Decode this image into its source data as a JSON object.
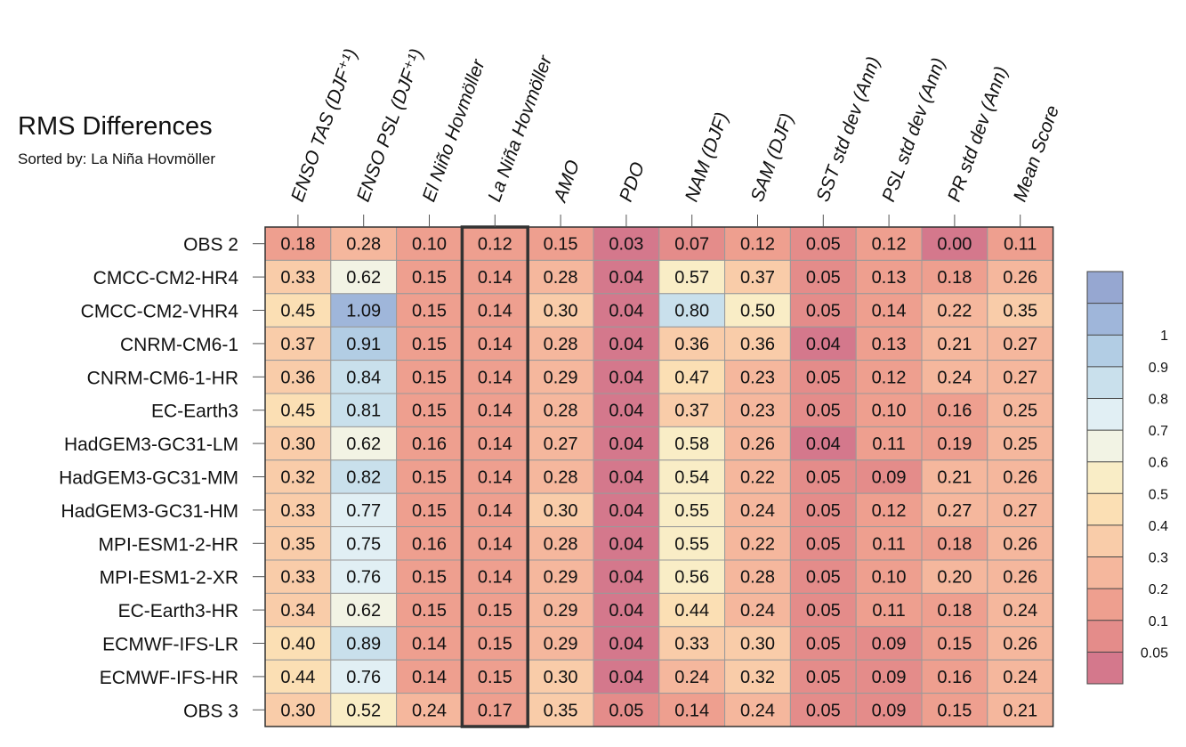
{
  "chart_data": {
    "type": "heatmap",
    "title": "RMS Differences",
    "subtitle": "Sorted by: La Niña Hovmöller",
    "columns": [
      "ENSO TAS (DJF⁺¹)",
      "ENSO PSL (DJF⁺¹)",
      "El Niño Hovmöller",
      "La Niña Hovmöller",
      "AMO",
      "PDO",
      "NAM (DJF)",
      "SAM (DJF)",
      "SST std dev (Ann)",
      "PSL std dev (Ann)",
      "PR std dev (Ann)",
      "Mean Score"
    ],
    "rows": [
      "OBS 2",
      "CMCC-CM2-HR4",
      "CMCC-CM2-VHR4",
      "CNRM-CM6-1",
      "CNRM-CM6-1-HR",
      "EC-Earth3",
      "HadGEM3-GC31-LM",
      "HadGEM3-GC31-MM",
      "HadGEM3-GC31-HM",
      "MPI-ESM1-2-HR",
      "MPI-ESM1-2-XR",
      "EC-Earth3-HR",
      "ECMWF-IFS-LR",
      "ECMWF-IFS-HR",
      "OBS 3"
    ],
    "values": [
      [
        "0.18",
        "0.28",
        "0.10",
        "0.12",
        "0.15",
        "0.03",
        "0.07",
        "0.12",
        "0.05",
        "0.12",
        "0.00",
        "0.11"
      ],
      [
        "0.33",
        "0.62",
        "0.15",
        "0.14",
        "0.28",
        "0.04",
        "0.57",
        "0.37",
        "0.05",
        "0.13",
        "0.18",
        "0.26"
      ],
      [
        "0.45",
        "1.09",
        "0.15",
        "0.14",
        "0.30",
        "0.04",
        "0.80",
        "0.50",
        "0.05",
        "0.14",
        "0.22",
        "0.35"
      ],
      [
        "0.37",
        "0.91",
        "0.15",
        "0.14",
        "0.28",
        "0.04",
        "0.36",
        "0.36",
        "0.04",
        "0.13",
        "0.21",
        "0.27"
      ],
      [
        "0.36",
        "0.84",
        "0.15",
        "0.14",
        "0.29",
        "0.04",
        "0.47",
        "0.23",
        "0.05",
        "0.12",
        "0.24",
        "0.27"
      ],
      [
        "0.45",
        "0.81",
        "0.15",
        "0.14",
        "0.28",
        "0.04",
        "0.37",
        "0.23",
        "0.05",
        "0.10",
        "0.16",
        "0.25"
      ],
      [
        "0.30",
        "0.62",
        "0.16",
        "0.14",
        "0.27",
        "0.04",
        "0.58",
        "0.26",
        "0.04",
        "0.11",
        "0.19",
        "0.25"
      ],
      [
        "0.32",
        "0.82",
        "0.15",
        "0.14",
        "0.28",
        "0.04",
        "0.54",
        "0.22",
        "0.05",
        "0.09",
        "0.21",
        "0.26"
      ],
      [
        "0.33",
        "0.77",
        "0.15",
        "0.14",
        "0.30",
        "0.04",
        "0.55",
        "0.24",
        "0.05",
        "0.12",
        "0.27",
        "0.27"
      ],
      [
        "0.35",
        "0.75",
        "0.16",
        "0.14",
        "0.28",
        "0.04",
        "0.55",
        "0.22",
        "0.05",
        "0.11",
        "0.18",
        "0.26"
      ],
      [
        "0.33",
        "0.76",
        "0.15",
        "0.14",
        "0.29",
        "0.04",
        "0.56",
        "0.28",
        "0.05",
        "0.10",
        "0.20",
        "0.26"
      ],
      [
        "0.34",
        "0.62",
        "0.15",
        "0.15",
        "0.29",
        "0.04",
        "0.44",
        "0.24",
        "0.05",
        "0.11",
        "0.18",
        "0.24"
      ],
      [
        "0.40",
        "0.89",
        "0.14",
        "0.15",
        "0.29",
        "0.04",
        "0.33",
        "0.30",
        "0.05",
        "0.09",
        "0.15",
        "0.26"
      ],
      [
        "0.44",
        "0.76",
        "0.14",
        "0.15",
        "0.30",
        "0.04",
        "0.24",
        "0.32",
        "0.05",
        "0.09",
        "0.16",
        "0.24"
      ],
      [
        "0.30",
        "0.52",
        "0.24",
        "0.17",
        "0.35",
        "0.05",
        "0.14",
        "0.24",
        "0.05",
        "0.09",
        "0.15",
        "0.21"
      ]
    ],
    "highlight_column": "La Niña Hovmöller",
    "colorbar": {
      "levels": [
        0,
        0.05,
        0.1,
        0.2,
        0.3,
        0.4,
        0.5,
        0.6,
        0.7,
        0.8,
        0.9,
        1,
        1.1
      ],
      "tick_labels": [
        "0.05",
        "0.1",
        "0.2",
        "0.3",
        "0.4",
        "0.5",
        "0.6",
        "0.7",
        "0.8",
        "0.9",
        "1"
      ],
      "colors": [
        "#d4788c",
        "#e48c8a",
        "#ee9f8f",
        "#f5b79d",
        "#f9cca9",
        "#fbdfb4",
        "#f9edc6",
        "#f2f3e4",
        "#e1eff4",
        "#c9e0ec",
        "#b2cde4",
        "#9fb6da",
        "#96a7d1"
      ]
    }
  }
}
